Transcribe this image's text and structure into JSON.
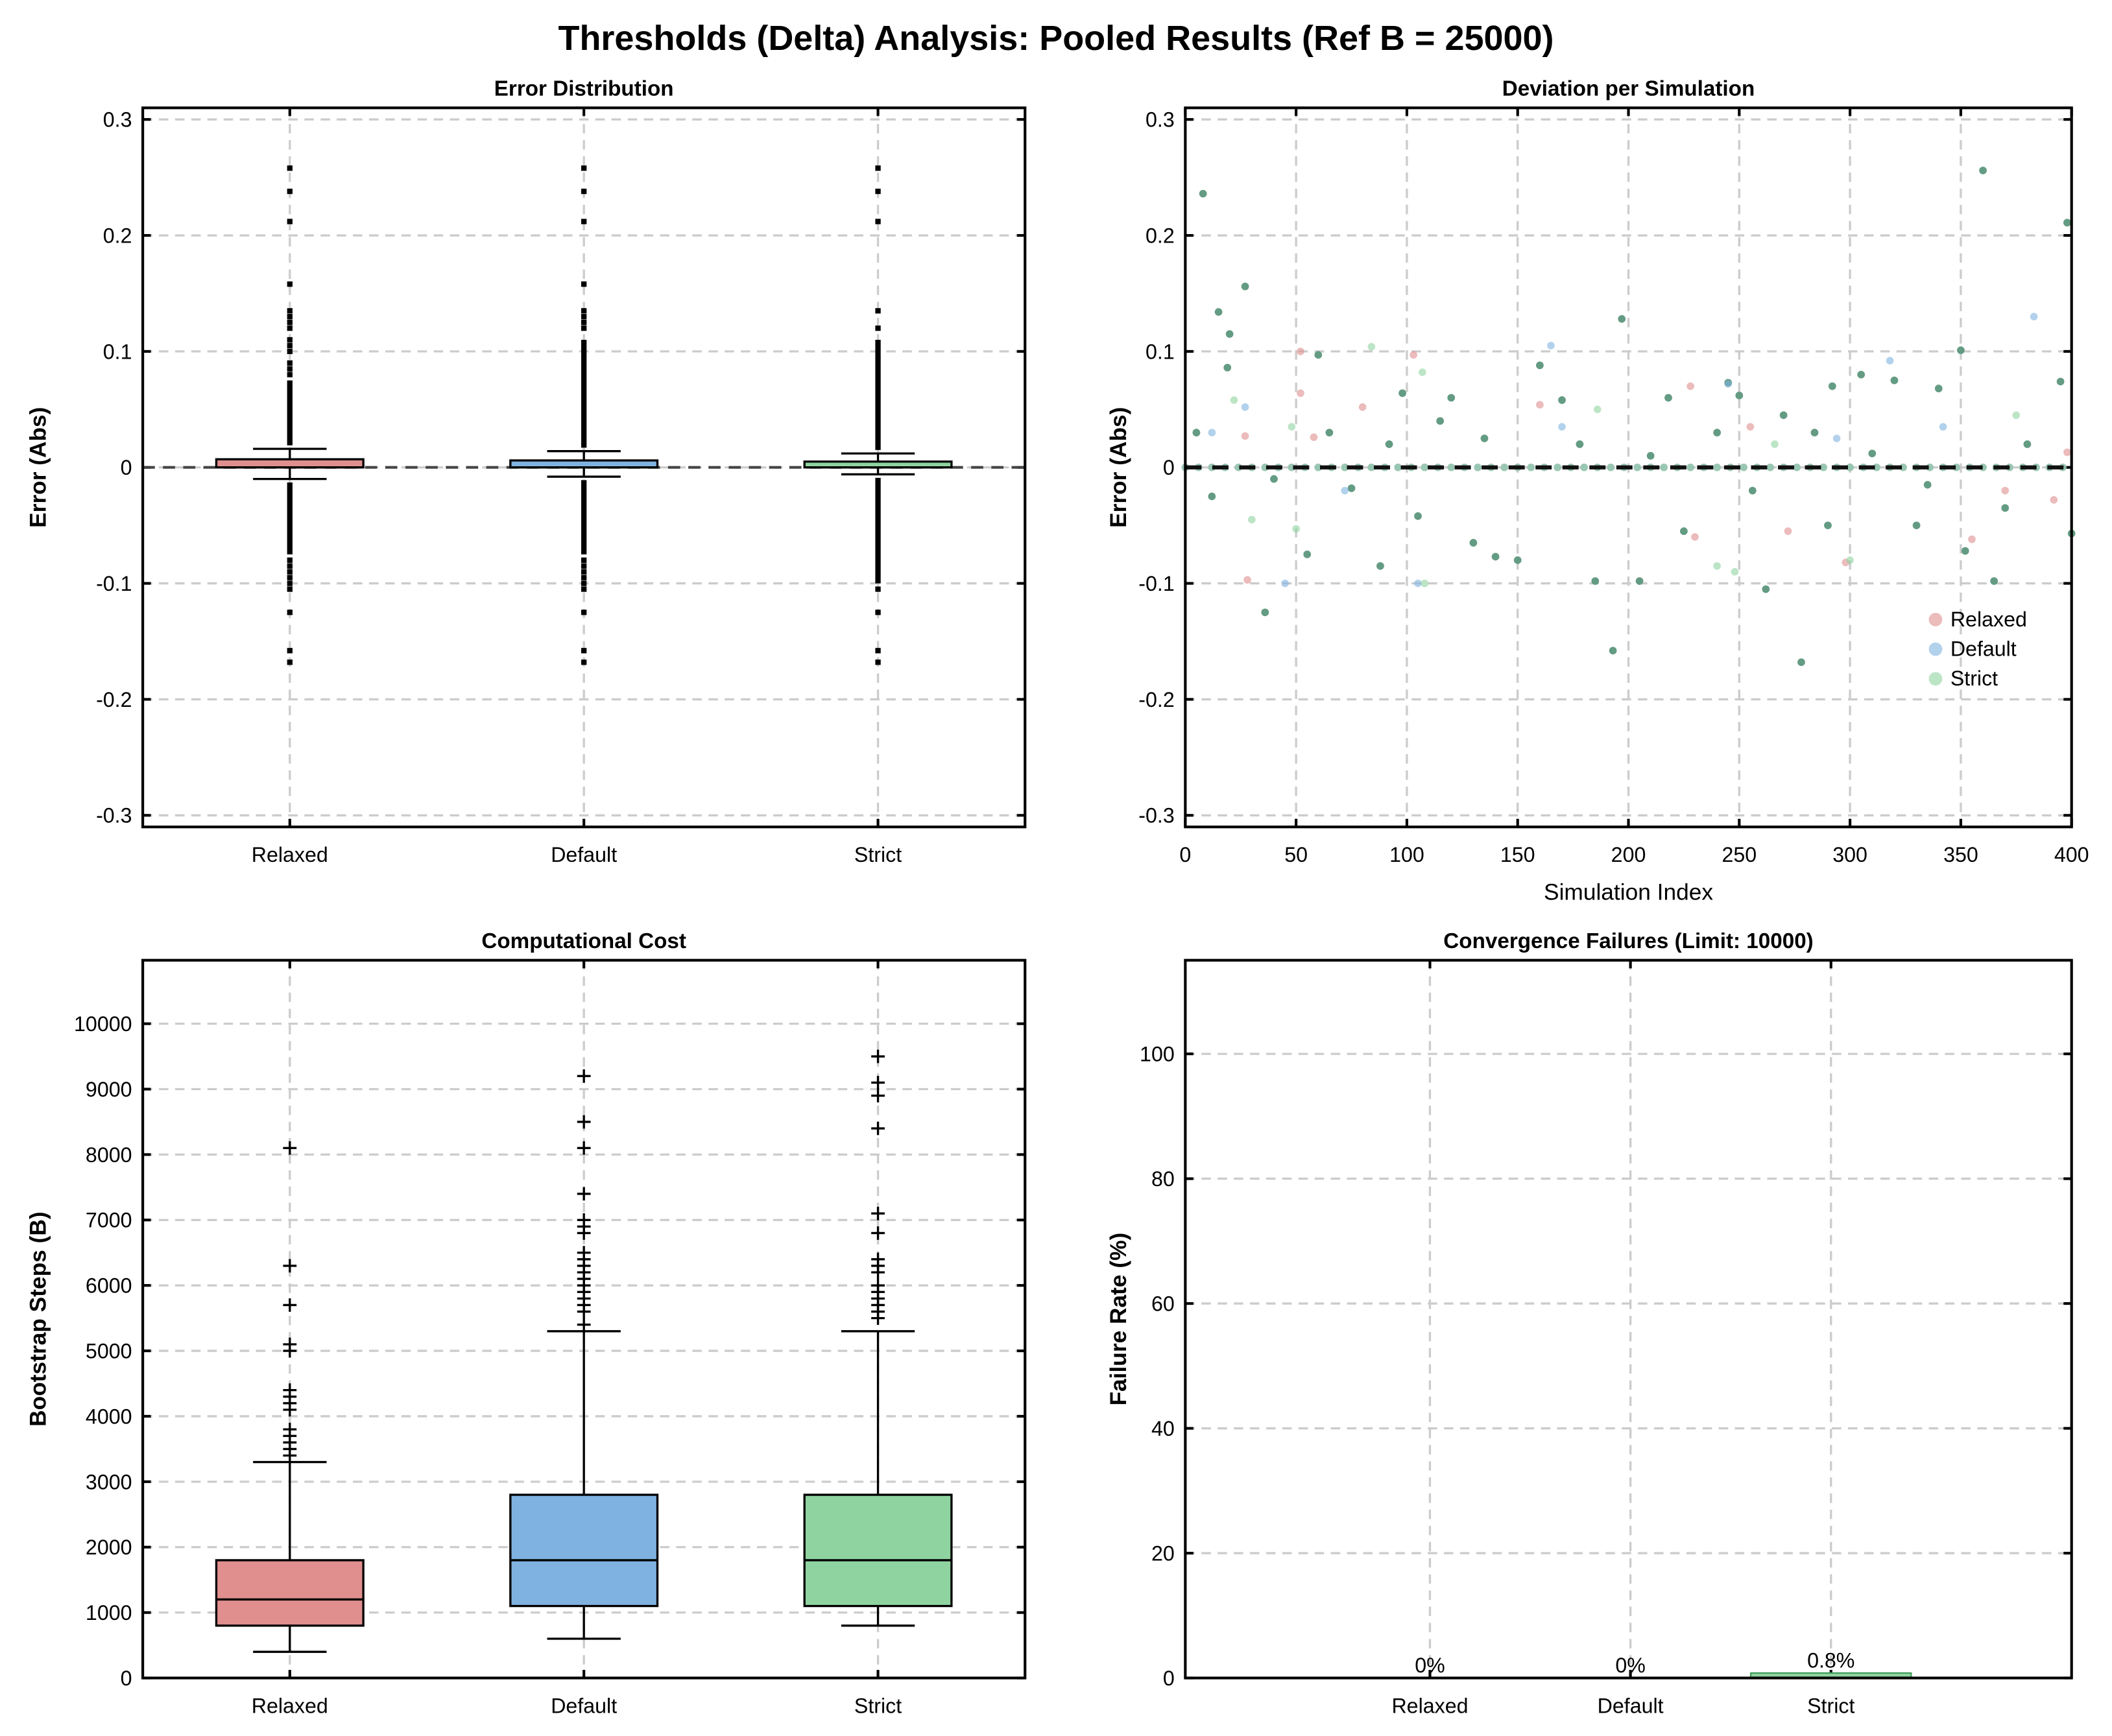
{
  "title": "Thresholds (Delta) Analysis: Pooled Results (Ref B = 25000)",
  "colors": {
    "Relaxed": "#e08e8e",
    "Default": "#7fb2e0",
    "Strict": "#8fd4a0"
  },
  "chart_data": [
    {
      "type": "box",
      "title": "Error Distribution",
      "xlabel": "",
      "ylabel": "Error (Abs)",
      "categories": [
        "Relaxed",
        "Default",
        "Strict"
      ],
      "ylim": [
        -0.31,
        0.31
      ],
      "yticks": [
        -0.3,
        -0.2,
        -0.1,
        0,
        0.1,
        0.2,
        0.3
      ],
      "ytick_labels": [
        "-0.3",
        "-0.2",
        "-0.1",
        "0",
        "0.1",
        "0.2",
        "0.3"
      ],
      "grid": true,
      "reference_line": 0,
      "boxes": [
        {
          "name": "Relaxed",
          "q1": 0.0,
          "median": 0.0,
          "q3": 0.007,
          "whisker_low": -0.01,
          "whisker_high": 0.016,
          "outlier_ranges": [
            [
              0.019,
              0.075
            ],
            [
              -0.075,
              -0.013
            ]
          ],
          "outliers": [
            0.08,
            0.085,
            0.09,
            0.1,
            0.105,
            0.11,
            0.12,
            0.125,
            0.13,
            0.135,
            0.158,
            0.212,
            0.238,
            0.258,
            -0.08,
            -0.085,
            -0.09,
            -0.095,
            -0.1,
            -0.105,
            -0.125,
            -0.158,
            -0.168
          ]
        },
        {
          "name": "Default",
          "q1": 0.0,
          "median": 0.0,
          "q3": 0.006,
          "whisker_low": -0.008,
          "whisker_high": 0.014,
          "outlier_ranges": [
            [
              0.017,
              0.11
            ],
            [
              -0.075,
              -0.011
            ]
          ],
          "outliers": [
            0.12,
            0.125,
            0.13,
            0.135,
            0.158,
            0.212,
            0.238,
            0.258,
            -0.08,
            -0.085,
            -0.09,
            -0.095,
            -0.1,
            -0.105,
            -0.125,
            -0.158,
            -0.168
          ]
        },
        {
          "name": "Strict",
          "q1": 0.0,
          "median": 0.0,
          "q3": 0.005,
          "whisker_low": -0.006,
          "whisker_high": 0.012,
          "outlier_ranges": [
            [
              0.015,
              0.11
            ],
            [
              -0.1,
              -0.009
            ]
          ],
          "outliers": [
            0.12,
            0.135,
            0.212,
            0.238,
            0.258,
            -0.105,
            -0.125,
            -0.158,
            -0.168
          ]
        }
      ]
    },
    {
      "type": "scatter",
      "title": "Deviation per Simulation",
      "xlabel": "Simulation Index",
      "ylabel": "Error (Abs)",
      "xlim": [
        0,
        400
      ],
      "xticks": [
        0,
        50,
        100,
        150,
        200,
        250,
        300,
        350,
        400
      ],
      "ylim": [
        -0.31,
        0.31
      ],
      "yticks": [
        -0.3,
        -0.2,
        -0.1,
        0,
        0.1,
        0.2,
        0.3
      ],
      "ytick_labels": [
        "-0.3",
        "-0.2",
        "-0.1",
        "0",
        "0.1",
        "0.2",
        "0.3"
      ],
      "grid": true,
      "reference_line": 0,
      "legend": {
        "placement": "lower-right",
        "entries": [
          "Relaxed",
          "Default",
          "Strict"
        ]
      },
      "zero_x": [
        0,
        6,
        12,
        18,
        24,
        30,
        36,
        42,
        48,
        54,
        60,
        66,
        72,
        78,
        84,
        90,
        96,
        102,
        108,
        114,
        120,
        126,
        132,
        138,
        144,
        150,
        156,
        162,
        168,
        174,
        180,
        186,
        192,
        198,
        204,
        210,
        216,
        222,
        228,
        234,
        240,
        246,
        252,
        258,
        264,
        270,
        276,
        282,
        288,
        294,
        300,
        306,
        312,
        318,
        324,
        330,
        336,
        342,
        348,
        354,
        360,
        366,
        372,
        378,
        384,
        390,
        396
      ],
      "shared_points": [
        [
          8,
          0.236
        ],
        [
          15,
          0.134
        ],
        [
          20,
          0.115
        ],
        [
          19,
          0.086
        ],
        [
          27,
          0.156
        ],
        [
          36,
          -0.125
        ],
        [
          60,
          0.097
        ],
        [
          98,
          0.064
        ],
        [
          160,
          0.088
        ],
        [
          197,
          0.128
        ],
        [
          218,
          0.06
        ],
        [
          225,
          -0.055
        ],
        [
          245,
          0.073
        ],
        [
          250,
          0.062
        ],
        [
          262,
          -0.105
        ],
        [
          278,
          -0.168
        ],
        [
          292,
          0.07
        ],
        [
          193,
          -0.158
        ],
        [
          340,
          0.068
        ],
        [
          350,
          0.101
        ],
        [
          352,
          -0.072
        ],
        [
          360,
          0.256
        ],
        [
          365,
          -0.098
        ],
        [
          395,
          0.074
        ],
        [
          398,
          0.211
        ],
        [
          400,
          -0.057
        ],
        [
          88,
          -0.085
        ],
        [
          130,
          -0.065
        ],
        [
          140,
          -0.077
        ],
        [
          150,
          -0.08
        ],
        [
          185,
          -0.098
        ],
        [
          205,
          -0.098
        ],
        [
          290,
          -0.05
        ],
        [
          330,
          -0.05
        ],
        [
          370,
          -0.035
        ],
        [
          55,
          -0.075
        ],
        [
          75,
          -0.018
        ],
        [
          105,
          -0.042
        ],
        [
          305,
          0.08
        ],
        [
          320,
          0.075
        ],
        [
          115,
          0.04
        ],
        [
          120,
          0.06
        ],
        [
          170,
          0.058
        ],
        [
          240,
          0.03
        ],
        [
          270,
          0.045
        ],
        [
          310,
          0.012
        ],
        [
          5,
          0.03
        ],
        [
          12,
          -0.025
        ],
        [
          40,
          -0.01
        ],
        [
          65,
          0.03
        ],
        [
          92,
          0.02
        ],
        [
          135,
          0.025
        ],
        [
          178,
          0.02
        ],
        [
          210,
          0.01
        ],
        [
          256,
          -0.02
        ],
        [
          284,
          0.03
        ],
        [
          335,
          -0.015
        ],
        [
          380,
          0.02
        ]
      ],
      "series": [
        {
          "name": "Relaxed",
          "points": [
            [
              27,
              0.027
            ],
            [
              52,
              0.1
            ],
            [
              52,
              0.064
            ],
            [
              80,
              0.052
            ],
            [
              103,
              0.097
            ],
            [
              28,
              -0.097
            ],
            [
              228,
              0.07
            ],
            [
              230,
              -0.06
            ],
            [
              298,
              -0.082
            ],
            [
              355,
              -0.062
            ],
            [
              370,
              -0.02
            ],
            [
              392,
              -0.028
            ],
            [
              398,
              0.013
            ],
            [
              272,
              -0.055
            ],
            [
              58,
              0.026
            ],
            [
              160,
              0.054
            ],
            [
              255,
              0.035
            ]
          ]
        },
        {
          "name": "Default",
          "points": [
            [
              45,
              -0.1
            ],
            [
              27,
              0.052
            ],
            [
              165,
              0.105
            ],
            [
              245,
              0.072
            ],
            [
              383,
              0.13
            ],
            [
              318,
              0.092
            ],
            [
              342,
              0.035
            ],
            [
              72,
              -0.02
            ],
            [
              105,
              -0.1
            ],
            [
              12,
              0.03
            ],
            [
              170,
              0.035
            ],
            [
              294,
              0.025
            ]
          ]
        },
        {
          "name": "Strict",
          "points": [
            [
              84,
              0.104
            ],
            [
              107,
              0.082
            ],
            [
              50,
              -0.053
            ],
            [
              108,
              -0.1
            ],
            [
              248,
              -0.09
            ],
            [
              300,
              -0.08
            ],
            [
              22,
              0.058
            ],
            [
              375,
              0.045
            ],
            [
              30,
              -0.045
            ],
            [
              240,
              -0.085
            ],
            [
              48,
              0.035
            ],
            [
              186,
              0.05
            ],
            [
              266,
              0.02
            ]
          ]
        }
      ]
    },
    {
      "type": "box",
      "title": "Computational Cost",
      "xlabel": "",
      "ylabel": "Bootstrap Steps (B)",
      "categories": [
        "Relaxed",
        "Default",
        "Strict"
      ],
      "ylim": [
        0,
        10970
      ],
      "yticks": [
        0,
        1000,
        2000,
        3000,
        4000,
        5000,
        6000,
        7000,
        8000,
        9000,
        10000
      ],
      "ytick_labels": [
        "0",
        "1000",
        "2000",
        "3000",
        "4000",
        "5000",
        "6000",
        "7000",
        "8000",
        "9000",
        "10000"
      ],
      "grid": true,
      "boxes": [
        {
          "name": "Relaxed",
          "q1": 800,
          "median": 1200,
          "q3": 1800,
          "whisker_low": 400,
          "whisker_high": 3300,
          "outliers": [
            3400,
            3500,
            3600,
            3700,
            3800,
            4100,
            4200,
            4300,
            4400,
            5000,
            5100,
            5700,
            6300,
            8100
          ]
        },
        {
          "name": "Default",
          "q1": 1100,
          "median": 1800,
          "q3": 2800,
          "whisker_low": 600,
          "whisker_high": 5300,
          "outliers": [
            5400,
            5600,
            5700,
            5800,
            5900,
            6000,
            6100,
            6200,
            6300,
            6400,
            6500,
            6800,
            6900,
            7000,
            7400,
            8100,
            8500,
            9200
          ]
        },
        {
          "name": "Strict",
          "q1": 1100,
          "median": 1800,
          "q3": 2800,
          "whisker_low": 800,
          "whisker_high": 5300,
          "outliers": [
            5500,
            5600,
            5700,
            5800,
            5900,
            6000,
            6200,
            6300,
            6400,
            6800,
            7100,
            8400,
            8900,
            9100,
            9500
          ]
        }
      ]
    },
    {
      "type": "bar",
      "title": "Convergence Failures (Limit: 10000)",
      "xlabel": "",
      "ylabel": "Failure Rate (%)",
      "categories": [
        "Relaxed",
        "Default",
        "Strict"
      ],
      "values": [
        0,
        0,
        0.8
      ],
      "data_labels": [
        "0%",
        "0%",
        "0.8%"
      ],
      "ylim": [
        0,
        115
      ],
      "yticks": [
        0,
        20,
        40,
        60,
        80,
        100
      ],
      "ytick_labels": [
        "0",
        "20",
        "40",
        "60",
        "80",
        "100"
      ],
      "grid": true
    }
  ]
}
